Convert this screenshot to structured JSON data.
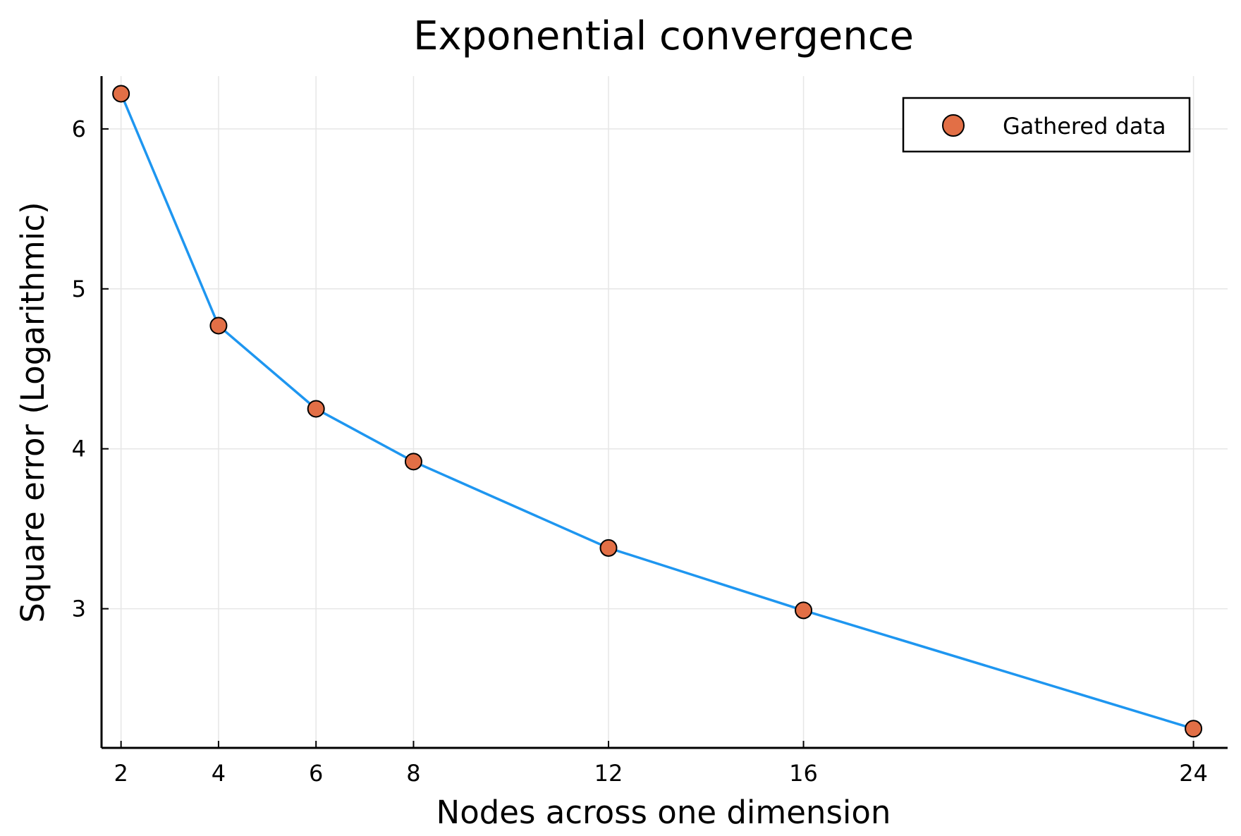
{
  "chart_data": {
    "type": "line",
    "title": "Exponential convergence",
    "xlabel": "Nodes across one dimension",
    "ylabel": "Square error (Logarithmic)",
    "x_ticks": [
      2,
      4,
      6,
      8,
      12,
      16,
      24
    ],
    "y_ticks": [
      3,
      4,
      5,
      6
    ],
    "xlim": [
      1.6,
      24.7
    ],
    "ylim": [
      2.13,
      6.33
    ],
    "grid": true,
    "legend_position": "top-right",
    "series": [
      {
        "name": "Gathered data",
        "x": [
          2,
          4,
          6,
          8,
          12,
          16,
          24
        ],
        "y": [
          6.22,
          4.77,
          4.25,
          3.92,
          3.38,
          2.99,
          2.25
        ],
        "line_color": "#1e96f0",
        "marker_color": "#e26f46"
      }
    ]
  }
}
